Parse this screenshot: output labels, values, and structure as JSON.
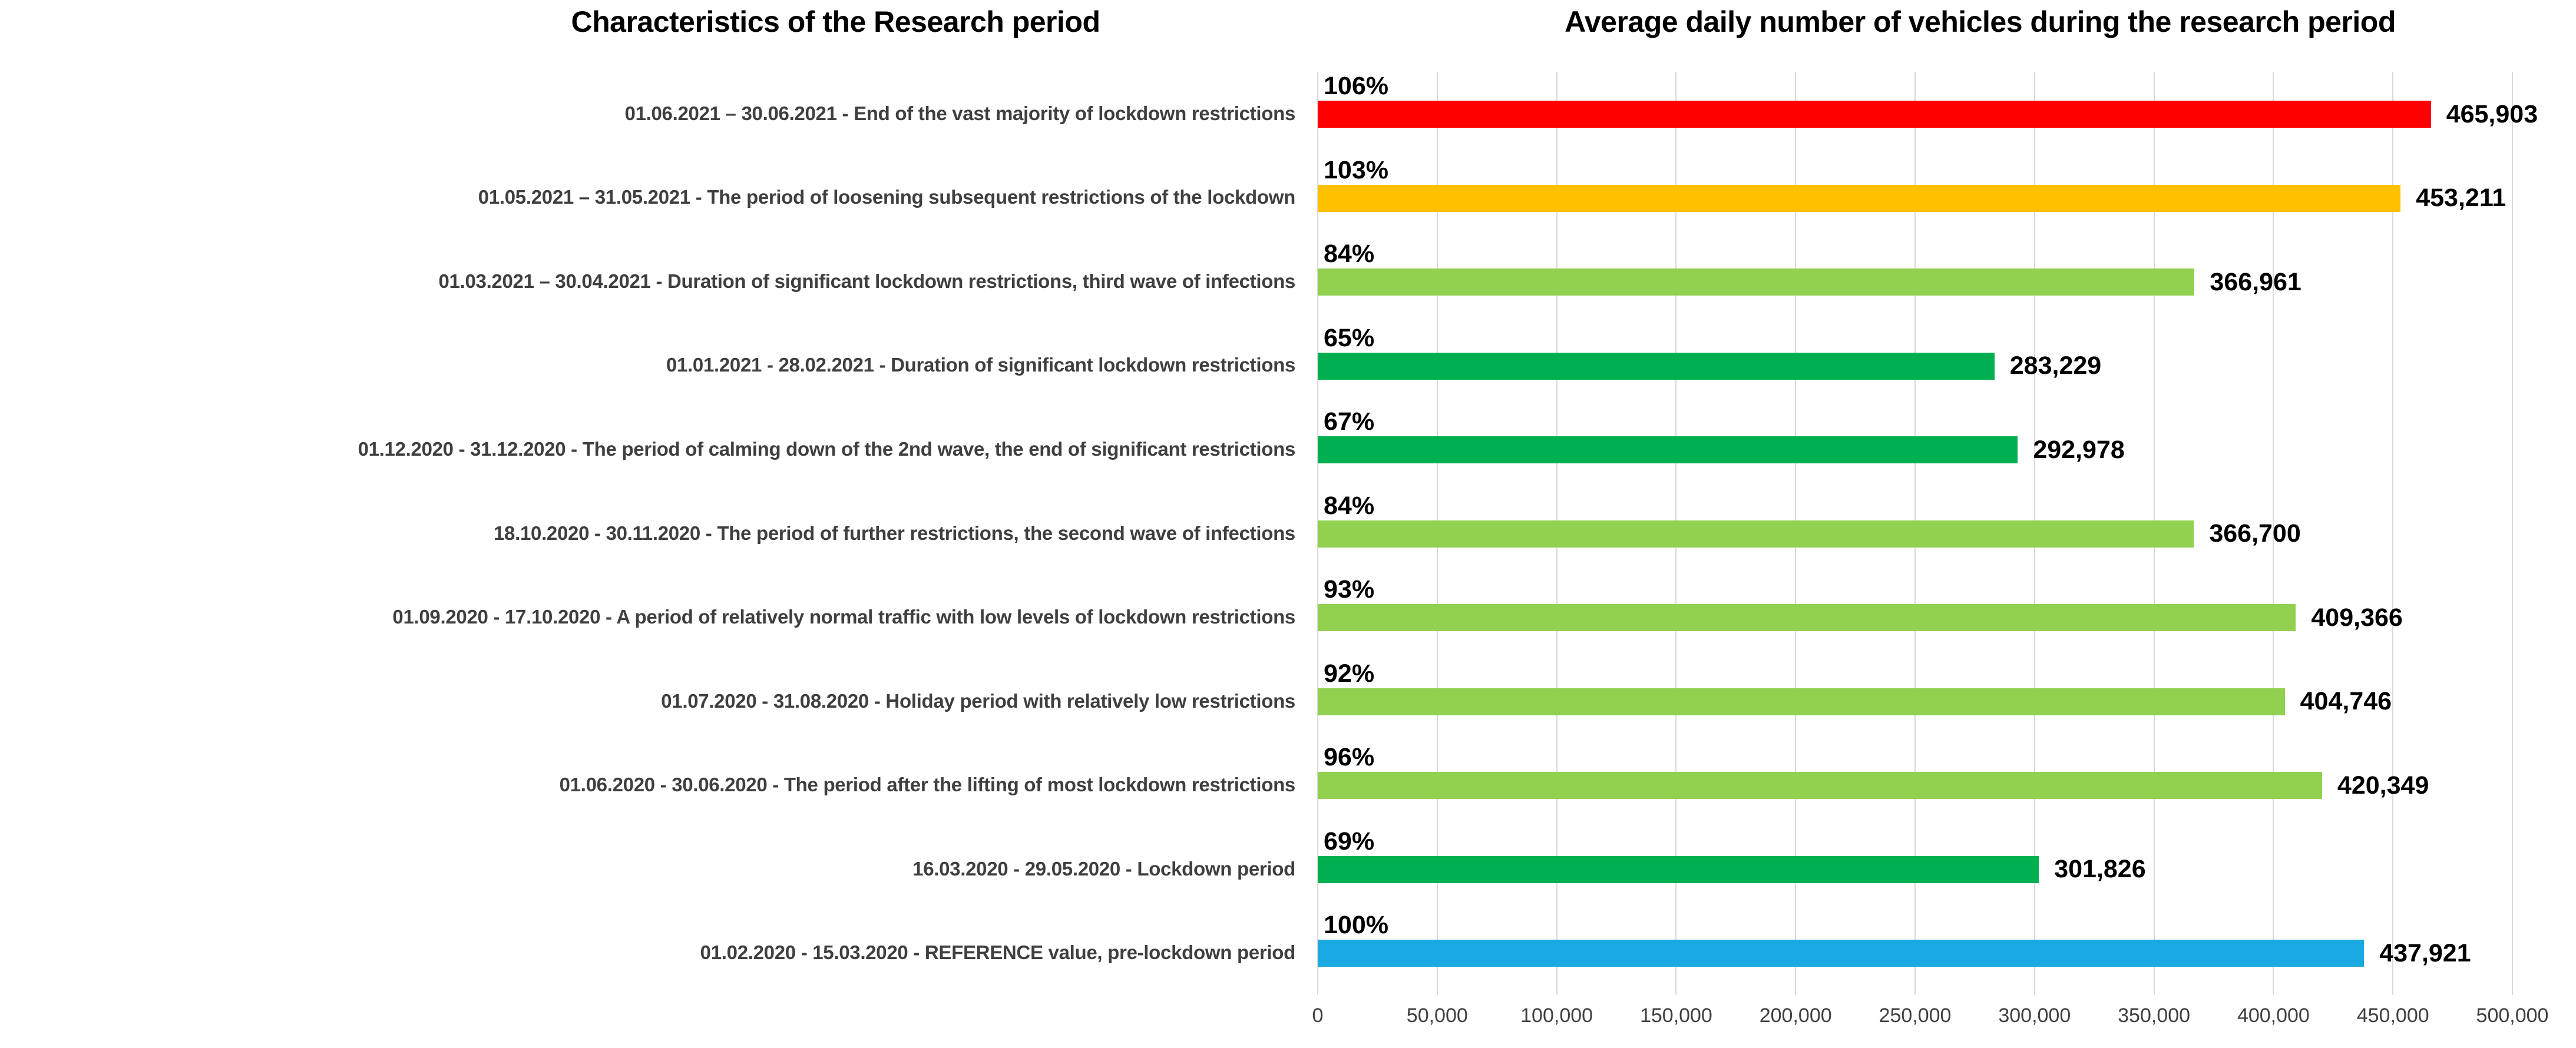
{
  "titles": {
    "left": "Characteristics of the Research period",
    "right": "Average daily number of vehicles during the research period"
  },
  "chart_data": {
    "type": "bar",
    "orientation": "horizontal",
    "title_left": "Characteristics of the Research period",
    "title_right": "Average daily number of vehicles during the research period",
    "xlim": [
      0,
      500000
    ],
    "grid": true,
    "x_ticks": [
      0,
      50000,
      100000,
      150000,
      200000,
      250000,
      300000,
      350000,
      400000,
      450000,
      500000
    ],
    "x_tick_labels": [
      "0",
      "50,000",
      "100,000",
      "150,000",
      "200,000",
      "250,000",
      "300,000",
      "350,000",
      "400,000",
      "450,000",
      "500,000"
    ],
    "colors": {
      "reference_blue": "#1BA9E1",
      "low_restriction_light_green": "#92D050",
      "lockdown_dark_green": "#00B050",
      "loosening_yellow": "#FFC000",
      "end_restrictions_red": "#FE0000"
    },
    "rows": [
      {
        "label": "01.06.2021 – 30.06.2021 - End of the vast majority of lockdown restrictions",
        "percent": "106%",
        "value": 465903,
        "value_label": "465,903",
        "color": "#FE0000"
      },
      {
        "label": "01.05.2021 – 31.05.2021 - The period of loosening subsequent restrictions of the lockdown",
        "percent": "103%",
        "value": 453211,
        "value_label": "453,211",
        "color": "#FFC000"
      },
      {
        "label": "01.03.2021 – 30.04.2021 - Duration of significant lockdown restrictions, third wave of infections",
        "percent": "84%",
        "value": 366961,
        "value_label": "366,961",
        "color": "#92D050"
      },
      {
        "label": "01.01.2021 - 28.02.2021 - Duration of significant lockdown restrictions",
        "percent": "65%",
        "value": 283229,
        "value_label": "283,229",
        "color": "#00B050"
      },
      {
        "label": "01.12.2020 - 31.12.2020 - The period of calming down of the 2nd wave, the end of significant restrictions",
        "percent": "67%",
        "value": 292978,
        "value_label": "292,978",
        "color": "#00B050"
      },
      {
        "label": "18.10.2020 - 30.11.2020 - The period of further restrictions, the second wave of infections",
        "percent": "84%",
        "value": 366700,
        "value_label": "366,700",
        "color": "#92D050"
      },
      {
        "label": "01.09.2020 - 17.10.2020 - A period of relatively normal traffic with low levels of lockdown restrictions",
        "percent": "93%",
        "value": 409366,
        "value_label": "409,366",
        "color": "#92D050"
      },
      {
        "label": "01.07.2020 - 31.08.2020 - Holiday period with relatively low restrictions",
        "percent": "92%",
        "value": 404746,
        "value_label": "404,746",
        "color": "#92D050"
      },
      {
        "label": "01.06.2020 - 30.06.2020 - The period after the lifting of most lockdown restrictions",
        "percent": "96%",
        "value": 420349,
        "value_label": "420,349",
        "color": "#92D050"
      },
      {
        "label": "16.03.2020 - 29.05.2020 - Lockdown period",
        "percent": "69%",
        "value": 301826,
        "value_label": "301,826",
        "color": "#00B050"
      },
      {
        "label": "01.02.2020 - 15.03.2020 - REFERENCE value, pre-lockdown period",
        "percent": "100%",
        "value": 437921,
        "value_label": "437,921",
        "color": "#1BA9E1"
      }
    ]
  }
}
